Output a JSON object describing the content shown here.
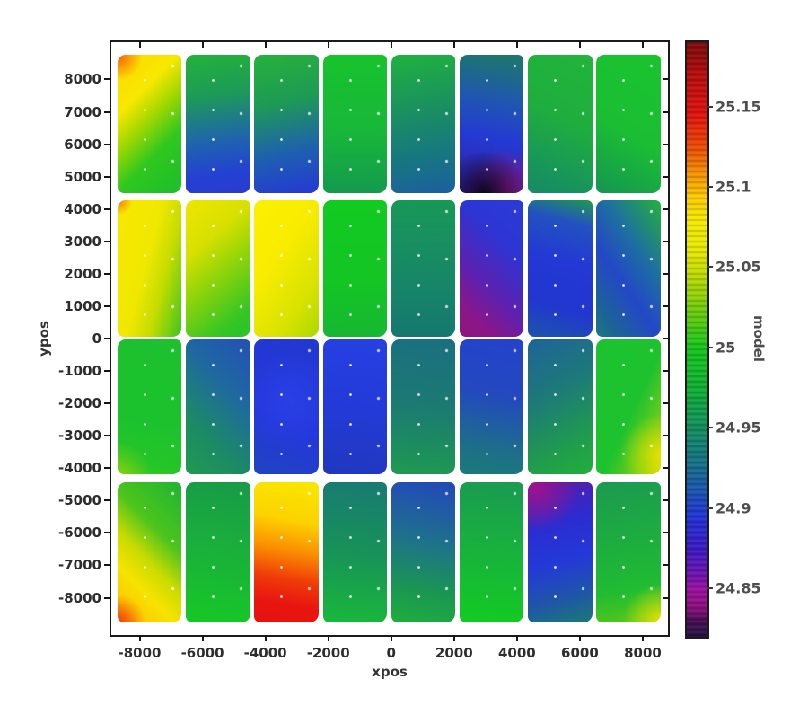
{
  "figure": {
    "background": "#ffffff"
  },
  "chart_data": {
    "type": "scatter",
    "title": "",
    "xlabel": "xpos",
    "ylabel": "ypos",
    "grid": false,
    "legend": false,
    "xlim": [
      -8900,
      8800
    ],
    "ylim": [
      -9150,
      9150
    ],
    "x_ticks": [
      -8000,
      -6000,
      -4000,
      -2000,
      0,
      2000,
      4000,
      6000,
      8000
    ],
    "x_tick_labels": [
      "-8000",
      "-6000",
      "-4000",
      "-2000",
      "0",
      "2000",
      "4000",
      "6000",
      "8000"
    ],
    "y_ticks": [
      8000,
      7000,
      6000,
      5000,
      4000,
      3000,
      2000,
      1000,
      0,
      -1000,
      -2000,
      -3000,
      -4000,
      -5000,
      -6000,
      -7000,
      -8000
    ],
    "y_tick_labels": [
      "8000",
      "7000",
      "6000",
      "5000",
      "4000",
      "3000",
      "2000",
      "1000",
      "0",
      "-1000",
      "-2000",
      "-3000",
      "-4000",
      "-5000",
      "-6000",
      "-7000",
      "-8000"
    ],
    "colorbar": {
      "label": "model",
      "value_top": 25.19,
      "value_bottom": 24.82,
      "ticks": [
        25.15,
        25.1,
        25.05,
        25.0,
        24.95,
        24.9,
        24.85
      ],
      "tick_labels": [
        "25.15",
        "25.1",
        "25.05",
        "25",
        "24.95",
        "24.9",
        "24.85"
      ],
      "gradient_stops": [
        {
          "at": 0,
          "c": "#7c0a0a"
        },
        {
          "at": 5.4,
          "c": "#b80e0e"
        },
        {
          "at": 12.2,
          "c": "#e41410"
        },
        {
          "at": 17.6,
          "c": "#ee4c06"
        },
        {
          "at": 21.6,
          "c": "#f68c00"
        },
        {
          "at": 25.7,
          "c": "#fdc800"
        },
        {
          "at": 29.7,
          "c": "#f9ea00"
        },
        {
          "at": 35.1,
          "c": "#e8ea00"
        },
        {
          "at": 39.2,
          "c": "#c0dc00"
        },
        {
          "at": 45.9,
          "c": "#66cc0e"
        },
        {
          "at": 51.4,
          "c": "#16c81e"
        },
        {
          "at": 58.1,
          "c": "#12b236"
        },
        {
          "at": 64.9,
          "c": "#149060"
        },
        {
          "at": 70.3,
          "c": "#177484"
        },
        {
          "at": 75.7,
          "c": "#1c54b4"
        },
        {
          "at": 79.7,
          "c": "#2136d8"
        },
        {
          "at": 85.1,
          "c": "#3a1cc8"
        },
        {
          "at": 89.2,
          "c": "#6c14b4"
        },
        {
          "at": 92.4,
          "c": "#a012a0"
        },
        {
          "at": 95.1,
          "c": "#8c1080"
        },
        {
          "at": 97.3,
          "c": "#4a0e54"
        },
        {
          "at": 100,
          "c": "#251343"
        }
      ]
    },
    "detector_grid": {
      "columns": 8,
      "rows": 4
    },
    "patches": [
      {
        "r": 1,
        "c": 1,
        "x": [
          -8700,
          -6660
        ],
        "y": [
          4480,
          8760
        ],
        "model": [
          25.0,
          25.17
        ],
        "fill": "radial-gradient(circle at 3% 2%, #f8690a 0%, rgba(248,105,10,0) 15%), linear-gradient(135deg, #ffd900 0%, #f7e800 30%, #9ed800 48%, #2fc81e 68%, #1dbd2c 100%)"
      },
      {
        "r": 1,
        "c": 2,
        "x": [
          -6525,
          -4485
        ],
        "y": [
          4480,
          8760
        ],
        "model": [
          24.9,
          25.01
        ],
        "fill": "linear-gradient(172deg, #23b23b 0%, #1d9a58 30%, #1f63ae 62%, #2440d2 85%, #2a3bd0 100%)"
      },
      {
        "r": 1,
        "c": 3,
        "x": [
          -4350,
          -2310
        ],
        "y": [
          4480,
          8760
        ],
        "model": [
          24.9,
          25.01
        ],
        "fill": "linear-gradient(168deg, #27b13c 0%, #1e9a55 35%, #1e5fb0 70%, #2538d4 100%)"
      },
      {
        "r": 1,
        "c": 4,
        "x": [
          -2175,
          -135
        ],
        "y": [
          4480,
          8760
        ],
        "model": [
          24.97,
          25.01
        ],
        "fill": "linear-gradient(180deg, #17c32c 0%, #18b73a 55%, #149a4e 100%)"
      },
      {
        "r": 1,
        "c": 5,
        "x": [
          0,
          2040
        ],
        "y": [
          4480,
          8760
        ],
        "model": [
          24.91,
          25.01
        ],
        "fill": "linear-gradient(170deg, #1fb23f 0%, #1a9060 40%, #17787e 70%, #1b5fa0 100%)"
      },
      {
        "r": 1,
        "c": 6,
        "x": [
          2175,
          4215
        ],
        "y": [
          4480,
          8760
        ],
        "model": [
          24.83,
          24.96
        ],
        "fill": "radial-gradient(circle at 38% 100%, rgba(10,4,26,0.95) 0%, rgba(10,4,26,0) 30%), radial-gradient(circle at 72% 97%, rgba(155,22,130,0.85) 0%, rgba(155,22,130,0) 28%), linear-gradient(190deg, #1d7a66 0%, #2055b2 35%, #2439d4 60%, #2e2cb8 80%, #3a1f9a 100%)"
      },
      {
        "r": 1,
        "c": 7,
        "x": [
          4350,
          6390
        ],
        "y": [
          4480,
          8760
        ],
        "model": [
          24.95,
          25.01
        ],
        "fill": "linear-gradient(205deg, #22b43c 0%, #1fae3e 45%, #17935e 85%, #168a66 100%)"
      },
      {
        "r": 1,
        "c": 8,
        "x": [
          6525,
          8565
        ],
        "y": [
          4480,
          8760
        ],
        "model": [
          24.96,
          25.02
        ],
        "fill": "linear-gradient(210deg, #1ac32e 0%, #1bbe33 55%, #159552 100%)"
      },
      {
        "r": 2,
        "c": 1,
        "x": [
          -8700,
          -6660
        ],
        "y": [
          60,
          4280
        ],
        "model": [
          25.01,
          25.12
        ],
        "fill": "radial-gradient(circle at 2% 1%, #f8820a 0%, rgba(248,130,10,0) 9%), linear-gradient(105deg, #f8e800 0%, #f0e800 45%, #c4dc00 68%, #52c81a 95%, #3dc41f 100%)"
      },
      {
        "r": 2,
        "c": 2,
        "x": [
          -6525,
          -4485
        ],
        "y": [
          60,
          4280
        ],
        "model": [
          25.0,
          25.09
        ],
        "fill": "linear-gradient(140deg, #eee600 0%, #d8e000 30%, #8cd40a 55%, #34c524 85%, #28c42a 100%)"
      },
      {
        "r": 2,
        "c": 3,
        "x": [
          -4350,
          -2310
        ],
        "y": [
          60,
          4280
        ],
        "model": [
          25.05,
          25.1
        ],
        "fill": "linear-gradient(125deg, #fdf000 0%, #f8ec00 40%, #d8e200 75%, #aad800 100%)"
      },
      {
        "r": 2,
        "c": 4,
        "x": [
          -2175,
          -135
        ],
        "y": [
          60,
          4280
        ],
        "model": [
          25.0,
          25.02
        ],
        "fill": "linear-gradient(180deg, #12ca20 0%, #14c524 60%, #16b733 100%)"
      },
      {
        "r": 2,
        "c": 5,
        "x": [
          0,
          2040
        ],
        "y": [
          60,
          4280
        ],
        "model": [
          24.94,
          24.97
        ],
        "fill": "linear-gradient(180deg, #189858 0%, #178866 55%, #15786f 100%)"
      },
      {
        "r": 2,
        "c": 6,
        "x": [
          2175,
          4215
        ],
        "y": [
          60,
          4280
        ],
        "model": [
          24.85,
          24.91
        ],
        "fill": "linear-gradient(222deg, #2b3bd6 0%, #2d35d4 30%, #5a22b2 60%, #8c1687 85%, #8f1480 100%)"
      },
      {
        "r": 2,
        "c": 7,
        "x": [
          4350,
          6390
        ],
        "y": [
          60,
          4280
        ],
        "model": [
          24.89,
          24.96
        ],
        "fill": "linear-gradient(195deg, #1e9a4e 0%, #2352c0 18%, #2338d4 45%, #2236d0 75%, #1d55a8 100%)"
      },
      {
        "r": 2,
        "c": 8,
        "x": [
          6525,
          8565
        ],
        "y": [
          60,
          4280
        ],
        "model": [
          24.9,
          25.0
        ],
        "fill": "linear-gradient(235deg, #25b13a 0%, #1e6fa0 35%, #2348c6 60%, #1d6396 85%, #187a80 100%)"
      },
      {
        "r": 3,
        "c": 1,
        "x": [
          -8700,
          -6660
        ],
        "y": [
          -4200,
          -40
        ],
        "model": [
          25.0,
          25.03
        ],
        "fill": "radial-gradient(circle at 0% 100%, rgba(190,220,0,.55) 0%, rgba(190,220,0,0) 22%), linear-gradient(190deg, #1dc02e 0%, #1cc22e 60%, #25c528 90%, #3ec81c 100%)"
      },
      {
        "r": 3,
        "c": 2,
        "x": [
          -6525,
          -4485
        ],
        "y": [
          -4200,
          -40
        ],
        "model": [
          24.91,
          24.98
        ],
        "fill": "linear-gradient(225deg, #2350b8 0%, #1f68a0 35%, #1c8a66 70%, #1f9a50 100%)"
      },
      {
        "r": 3,
        "c": 3,
        "x": [
          -4350,
          -2310
        ],
        "y": [
          -4200,
          -40
        ],
        "model": [
          24.89,
          24.91
        ],
        "fill": "radial-gradient(circle at 55% 45%, rgba(45,70,240,.6) 0%, rgba(45,70,240,0) 60%), linear-gradient(200deg, #2338d0 0%, #2436da 60%, #2144c2 100%)"
      },
      {
        "r": 3,
        "c": 4,
        "x": [
          -2175,
          -135
        ],
        "y": [
          -4200,
          -40
        ],
        "model": [
          24.89,
          24.91
        ],
        "fill": "linear-gradient(185deg, #2640e2 0%, #243ad8 50%, #2038bf 100%)"
      },
      {
        "r": 3,
        "c": 5,
        "x": [
          0,
          2040
        ],
        "y": [
          -4200,
          -40
        ],
        "model": [
          24.93,
          24.97
        ],
        "fill": "linear-gradient(185deg, #1b6f80 0%, #1b7a72 50%, #1e9a50 100%)"
      },
      {
        "r": 3,
        "c": 6,
        "x": [
          2175,
          4215
        ],
        "y": [
          -4200,
          -40
        ],
        "model": [
          24.9,
          24.95
        ],
        "fill": "linear-gradient(190deg, #2442cc 0%, #2348c0 40%, #1d6f88 80%, #1c7a78 100%)"
      },
      {
        "r": 3,
        "c": 7,
        "x": [
          4350,
          6390
        ],
        "y": [
          -4200,
          -40
        ],
        "model": [
          24.92,
          25.0
        ],
        "fill": "linear-gradient(150deg, #1e639a 0%, #1d7a78 40%, #20a048 80%, #22ae3e 100%)"
      },
      {
        "r": 3,
        "c": 8,
        "x": [
          6525,
          8565
        ],
        "y": [
          -4200,
          -40
        ],
        "model": [
          25.0,
          25.07
        ],
        "fill": "radial-gradient(circle at 100% 85%, rgba(235,225,0,.9) 0%, rgba(235,225,0,0) 30%), linear-gradient(115deg, #1bc230 0%, #1ec22e 55%, #7ed014 85%, #ccdc00 100%)"
      },
      {
        "r": 4,
        "c": 1,
        "x": [
          -8700,
          -6660
        ],
        "y": [
          -8760,
          -4450
        ],
        "model": [
          25.0,
          25.14
        ],
        "fill": "radial-gradient(circle at 0% 100%, rgba(240,60,10,.95) 0%, rgba(240,60,10,0) 18%), linear-gradient(225deg, #1fb434 0%, #4cc41c 35%, #c8dc00 55%, #f7e300 72%, #fdca00 88%, #fa9200 100%)"
      },
      {
        "r": 4,
        "c": 2,
        "x": [
          -6525,
          -4485
        ],
        "y": [
          -8760,
          -4450
        ],
        "model": [
          24.97,
          25.02
        ],
        "fill": "linear-gradient(190deg, #189a48 0%, #1aae3c 45%, #16c926 100%)"
      },
      {
        "r": 4,
        "c": 3,
        "x": [
          -4350,
          -2310
        ],
        "y": [
          -8760,
          -4450
        ],
        "model": [
          25.09,
          25.17
        ],
        "fill": "linear-gradient(190deg, #f8e800 0%, #fdd200 28%, #fa9000 48%, #ef3a08 68%, #e81410 85%, #e51310 100%)"
      },
      {
        "r": 4,
        "c": 4,
        "x": [
          -2175,
          -135
        ],
        "y": [
          -8760,
          -4450
        ],
        "model": [
          24.94,
          25.01
        ],
        "fill": "linear-gradient(185deg, #187a72 0%, #189258 50%, #19b83c 100%)"
      },
      {
        "r": 4,
        "c": 5,
        "x": [
          0,
          2040
        ],
        "y": [
          -8760,
          -4450
        ],
        "model": [
          24.9,
          25.0
        ],
        "fill": "linear-gradient(190deg, #2347bb 0%, #1e6f8e 40%, #1b9552 75%, #1fae3e 100%)"
      },
      {
        "r": 4,
        "c": 6,
        "x": [
          2175,
          4215
        ],
        "y": [
          -8760,
          -4450
        ],
        "model": [
          24.96,
          25.02
        ],
        "fill": "linear-gradient(185deg, #1b9a52 0%, #18b23c 50%, #13cb22 100%)"
      },
      {
        "r": 4,
        "c": 7,
        "x": [
          4350,
          6390
        ],
        "y": [
          -8760,
          -4450
        ],
        "model": [
          24.84,
          24.95
        ],
        "fill": "radial-gradient(circle at 12% 4%, rgba(160,18,140,.95) 0%, rgba(160,18,140,0) 30%), linear-gradient(165deg, #5a1ba8 0%, #2c2cd0 30%, #2438d8 55%, #1f55a8 80%, #1b7a74 100%)"
      },
      {
        "r": 4,
        "c": 8,
        "x": [
          6525,
          8565
        ],
        "y": [
          -8760,
          -4450
        ],
        "model": [
          24.96,
          25.06
        ],
        "fill": "radial-gradient(circle at 100% 100%, rgba(240,228,0,.95) 0%, rgba(240,228,0,0) 25%), linear-gradient(170deg, #1b9a50 0%, #1dae3e 45%, #20bc32 75%, #5ac818 100%)"
      }
    ]
  }
}
